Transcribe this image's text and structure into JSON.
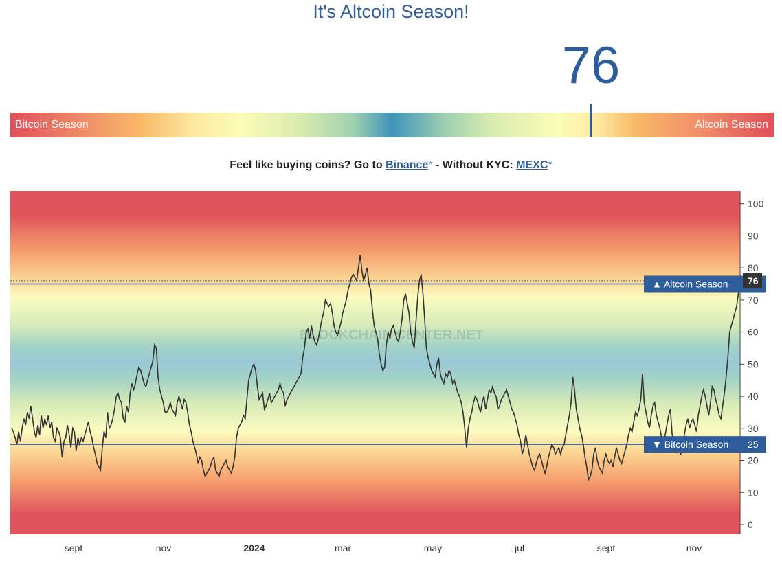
{
  "page": {
    "title": "It's Altcoin Season!",
    "index_value": "76",
    "index_number": 76
  },
  "gauge": {
    "left_label": "Bitcoin Season",
    "right_label": "Altcoin Season"
  },
  "promo": {
    "text1": "Feel like buying coins? Go to ",
    "binance": "Binance",
    "star": "*",
    "text2": " - Without KYC: ",
    "mexc": "MEXC"
  },
  "watermark": "BLOCKCHAIN CENTER.NET",
  "colors": {
    "brand_blue": "#2f5d9c",
    "season_red": "#e0505a",
    "neutral_blue": "#3f93ba",
    "line": "#333333"
  },
  "chart_data": {
    "type": "line",
    "series": [
      {
        "values": [
          30,
          29,
          27,
          25,
          29,
          26,
          30,
          33,
          31,
          35,
          33,
          37,
          33,
          29,
          27,
          31,
          28,
          34,
          30,
          33,
          31,
          34,
          30,
          32,
          27,
          26,
          30,
          29,
          27,
          21,
          26,
          27,
          31,
          28,
          24,
          30,
          29,
          23,
          27,
          25,
          27,
          26,
          28,
          30,
          32,
          29,
          27,
          24,
          22,
          19,
          18,
          17,
          24,
          29,
          27,
          35,
          30,
          31,
          33,
          36,
          40,
          41,
          39,
          38,
          33,
          32,
          37,
          35,
          41,
          44,
          42,
          44,
          47,
          49,
          48,
          46,
          44,
          43,
          45,
          47,
          49,
          51,
          56,
          55,
          46,
          42,
          40,
          38,
          35,
          35,
          36,
          38,
          36,
          35,
          34,
          38,
          40,
          38,
          36,
          39,
          38,
          35,
          31,
          29,
          26,
          24,
          22,
          19,
          21,
          20,
          17,
          15,
          16,
          17,
          18,
          20,
          21,
          17,
          16,
          15,
          17,
          18,
          19,
          20,
          18,
          17,
          16,
          18,
          21,
          27,
          30,
          31,
          32,
          34,
          33,
          39,
          45,
          47,
          49,
          50,
          48,
          43,
          39,
          40,
          41,
          36,
          37,
          39,
          41,
          38,
          39,
          40,
          41,
          42,
          44,
          42,
          41,
          37,
          39,
          40,
          41,
          42,
          43,
          44,
          45,
          46,
          47,
          52,
          55,
          60,
          61,
          58,
          62,
          59,
          57,
          56,
          58,
          61,
          64,
          66,
          70,
          69,
          68,
          69,
          66,
          62,
          60,
          59,
          61,
          63,
          66,
          68,
          70,
          73,
          75,
          77,
          78,
          77,
          76,
          80,
          84,
          79,
          76,
          78,
          80,
          75,
          73,
          67,
          62,
          60,
          58,
          53,
          50,
          48,
          49,
          56,
          60,
          58,
          61,
          62,
          60,
          58,
          57,
          60,
          64,
          70,
          72,
          69,
          66,
          60,
          57,
          55,
          63,
          71,
          76,
          78,
          72,
          64,
          55,
          52,
          50,
          48,
          47,
          46,
          50,
          52,
          47,
          45,
          44,
          47,
          46,
          48,
          47,
          44,
          45,
          43,
          41,
          40,
          38,
          35,
          30,
          24,
          30,
          33,
          35,
          38,
          40,
          39,
          37,
          35,
          38,
          40,
          36,
          39,
          42,
          41,
          43,
          41,
          40,
          36,
          37,
          39,
          40,
          41,
          42,
          40,
          38,
          36,
          35,
          33,
          31,
          28,
          26,
          22,
          24,
          28,
          25,
          22,
          20,
          18,
          17,
          19,
          21,
          22,
          20,
          18,
          16,
          18,
          21,
          23,
          25,
          24,
          22,
          23,
          24,
          22,
          24,
          25,
          28,
          31,
          34,
          38,
          46,
          42,
          36,
          33,
          30,
          28,
          25,
          21,
          18,
          14,
          15,
          17,
          22,
          24,
          20,
          18,
          17,
          16,
          20,
          22,
          20,
          19,
          20,
          18,
          21,
          24,
          22,
          20,
          19,
          21,
          23,
          25,
          28,
          30,
          29,
          32,
          35,
          34,
          36,
          39,
          47,
          38,
          35,
          32,
          30,
          34,
          37,
          38,
          34,
          32,
          30,
          27,
          24,
          28,
          31,
          34,
          36,
          28,
          27,
          25,
          24,
          23,
          22,
          25,
          28,
          31,
          33,
          30,
          32,
          33,
          31,
          29,
          34,
          37,
          40,
          42,
          40,
          37,
          34,
          38,
          43,
          42,
          39,
          37,
          34,
          33,
          37,
          41,
          46,
          52,
          60,
          62,
          64,
          66,
          68,
          72,
          76
        ]
      }
    ],
    "x_labels": [
      "sept",
      "nov",
      "2024",
      "mar",
      "may",
      "jul",
      "sept",
      "nov"
    ],
    "y_ticks": [
      0,
      10,
      20,
      30,
      40,
      50,
      60,
      70,
      80,
      90,
      100
    ],
    "ylim": [
      -3,
      104
    ],
    "reference_lines": [
      {
        "label": "▲ Altcoin Season",
        "value": 75
      },
      {
        "label": "▼ Bitcoin Season",
        "value": 25
      }
    ],
    "current_value": 76,
    "grid": false,
    "legend": "none"
  }
}
